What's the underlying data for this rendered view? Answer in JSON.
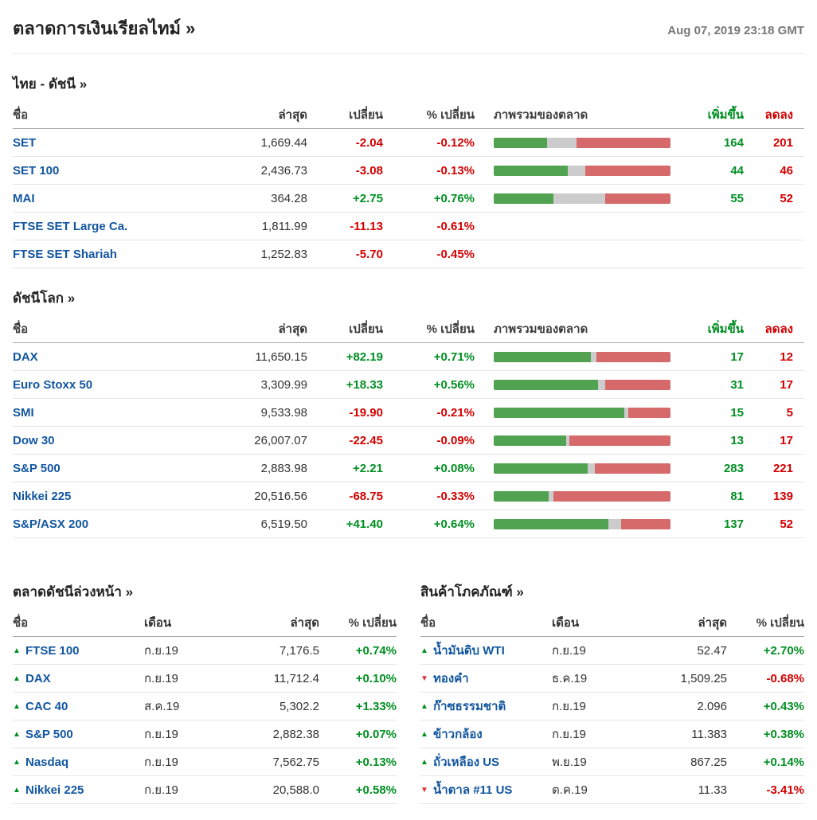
{
  "header": {
    "title": "ตลาดการเงินเรียลไทม์ »",
    "timestamp": "Aug 07, 2019 23:18 GMT"
  },
  "colors": {
    "green_text": "#008f22",
    "red_text": "#d30000",
    "bar_green": "#51a351",
    "bar_gray": "#cccccc",
    "bar_red": "#d66a6a",
    "name_blue": "#1256a0"
  },
  "icons": {
    "up": "▲",
    "down": "▼"
  },
  "columns": {
    "name": "ชื่อ",
    "last": "ล่าสุด",
    "change": "เปลี่ยน",
    "percent_change": "% เปลี่ยน",
    "market_overview": "ภาพรวมของตลาด",
    "advancers": "เพิ่มขึ้น",
    "decliners": "ลดลง",
    "month": "เดือน"
  },
  "thai_indices": {
    "title": "ไทย - ดัชนี »",
    "rows": [
      {
        "name": "SET",
        "last": "1,669.44",
        "change": "-2.04",
        "pct": "-0.12%",
        "bar": {
          "green": 30,
          "gray": 17,
          "red": 53
        },
        "adv": "164",
        "dec": "201"
      },
      {
        "name": "SET 100",
        "last": "2,436.73",
        "change": "-3.08",
        "pct": "-0.13%",
        "bar": {
          "green": 42,
          "gray": 10,
          "red": 48
        },
        "adv": "44",
        "dec": "46"
      },
      {
        "name": "MAI",
        "last": "364.28",
        "change": "+2.75",
        "pct": "+0.76%",
        "bar": {
          "green": 34,
          "gray": 29,
          "red": 37
        },
        "adv": "55",
        "dec": "52"
      },
      {
        "name": "FTSE SET Large Ca.",
        "last": "1,811.99",
        "change": "-11.13",
        "pct": "-0.61%",
        "bar": null,
        "adv": "",
        "dec": ""
      },
      {
        "name": "FTSE SET Shariah",
        "last": "1,252.83",
        "change": "-5.70",
        "pct": "-0.45%",
        "bar": null,
        "adv": "",
        "dec": ""
      }
    ]
  },
  "world_indices": {
    "title": "ดัชนีโลก »",
    "rows": [
      {
        "name": "DAX",
        "last": "11,650.15",
        "change": "+82.19",
        "pct": "+0.71%",
        "bar": {
          "green": 55,
          "gray": 3,
          "red": 42
        },
        "adv": "17",
        "dec": "12"
      },
      {
        "name": "Euro Stoxx 50",
        "last": "3,309.99",
        "change": "+18.33",
        "pct": "+0.56%",
        "bar": {
          "green": 59,
          "gray": 4,
          "red": 37
        },
        "adv": "31",
        "dec": "17"
      },
      {
        "name": "SMI",
        "last": "9,533.98",
        "change": "-19.90",
        "pct": "-0.21%",
        "bar": {
          "green": 74,
          "gray": 2,
          "red": 24
        },
        "adv": "15",
        "dec": "5"
      },
      {
        "name": "Dow 30",
        "last": "26,007.07",
        "change": "-22.45",
        "pct": "-0.09%",
        "bar": {
          "green": 41,
          "gray": 2,
          "red": 57
        },
        "adv": "13",
        "dec": "17"
      },
      {
        "name": "S&P 500",
        "last": "2,883.98",
        "change": "+2.21",
        "pct": "+0.08%",
        "bar": {
          "green": 53,
          "gray": 4,
          "red": 43
        },
        "adv": "283",
        "dec": "221"
      },
      {
        "name": "Nikkei 225",
        "last": "20,516.56",
        "change": "-68.75",
        "pct": "-0.33%",
        "bar": {
          "green": 31,
          "gray": 3,
          "red": 66
        },
        "adv": "81",
        "dec": "139"
      },
      {
        "name": "S&P/ASX 200",
        "last": "6,519.50",
        "change": "+41.40",
        "pct": "+0.64%",
        "bar": {
          "green": 65,
          "gray": 7,
          "red": 28
        },
        "adv": "137",
        "dec": "52"
      }
    ]
  },
  "futures": {
    "title": "ตลาดดัชนีล่วงหน้า »",
    "rows": [
      {
        "dir": "up",
        "name": "FTSE 100",
        "month": "ก.ย.19",
        "last": "7,176.5",
        "pct": "+0.74%"
      },
      {
        "dir": "up",
        "name": "DAX",
        "month": "ก.ย.19",
        "last": "11,712.4",
        "pct": "+0.10%"
      },
      {
        "dir": "up",
        "name": "CAC 40",
        "month": "ส.ค.19",
        "last": "5,302.2",
        "pct": "+1.33%"
      },
      {
        "dir": "up",
        "name": "S&P 500",
        "month": "ก.ย.19",
        "last": "2,882.38",
        "pct": "+0.07%"
      },
      {
        "dir": "up",
        "name": "Nasdaq",
        "month": "ก.ย.19",
        "last": "7,562.75",
        "pct": "+0.13%"
      },
      {
        "dir": "up",
        "name": "Nikkei 225",
        "month": "ก.ย.19",
        "last": "20,588.0",
        "pct": "+0.58%"
      }
    ]
  },
  "commodities": {
    "title": "สินค้าโภคภัณฑ์ »",
    "rows": [
      {
        "dir": "up",
        "name": "น้ำมันดิบ WTI",
        "month": "ก.ย.19",
        "last": "52.47",
        "pct": "+2.70%"
      },
      {
        "dir": "down",
        "name": "ทองคำ",
        "month": "ธ.ค.19",
        "last": "1,509.25",
        "pct": "-0.68%"
      },
      {
        "dir": "up",
        "name": "ก๊าซธรรมชาติ",
        "month": "ก.ย.19",
        "last": "2.096",
        "pct": "+0.43%"
      },
      {
        "dir": "up",
        "name": "ข้าวกล้อง",
        "month": "ก.ย.19",
        "last": "11.383",
        "pct": "+0.38%"
      },
      {
        "dir": "up",
        "name": "ถั่วเหลือง US",
        "month": "พ.ย.19",
        "last": "867.25",
        "pct": "+0.14%"
      },
      {
        "dir": "down",
        "name": "น้ำตาล #11 US",
        "month": "ต.ค.19",
        "last": "11.33",
        "pct": "-3.41%"
      }
    ]
  }
}
